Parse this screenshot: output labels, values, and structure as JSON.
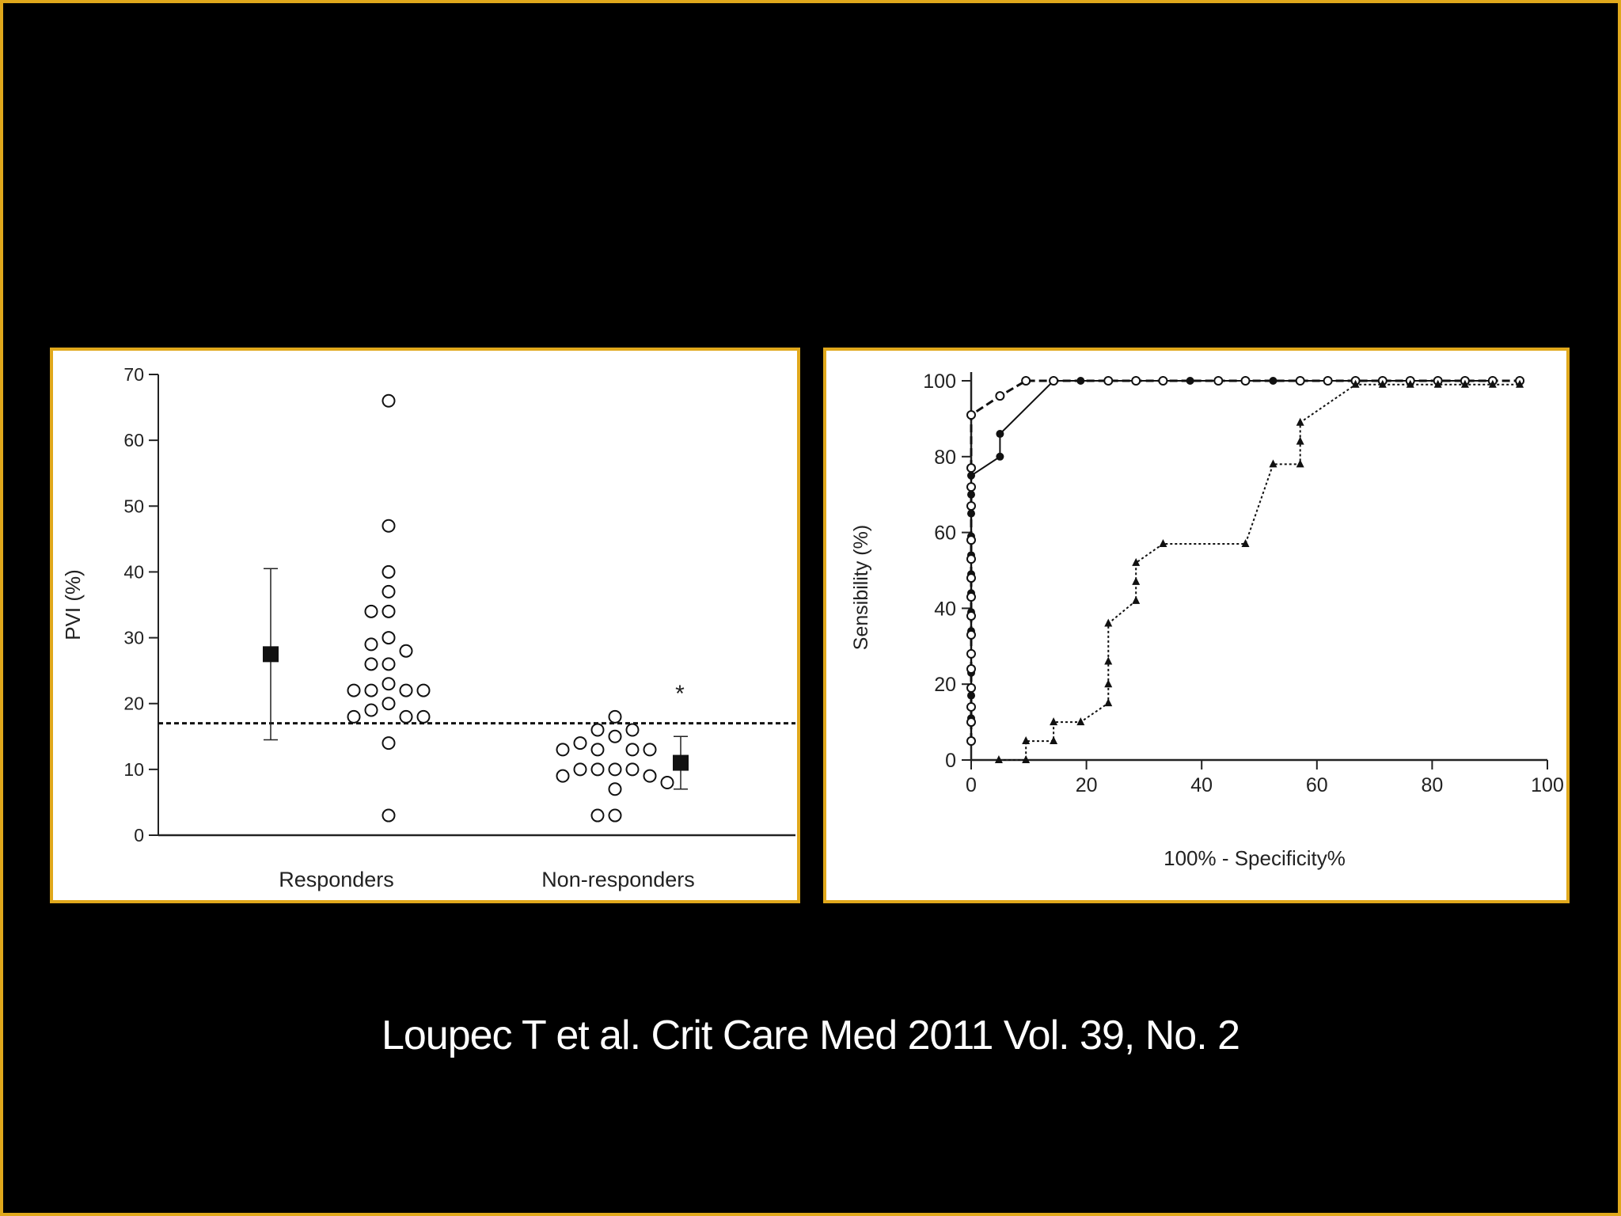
{
  "citation": "Loupec T et al.  Crit Care Med 2011 Vol. 39, No. 2",
  "colors": {
    "background": "#000000",
    "border": "#e0a81c",
    "panel": "#ffffff",
    "ink": "#222222"
  },
  "chart_data": [
    {
      "type": "scatter",
      "title": "",
      "ylabel": "PVI (%)",
      "xlabel": "",
      "ylim": [
        0,
        70
      ],
      "yticks": [
        0,
        10,
        20,
        30,
        40,
        50,
        60,
        70
      ],
      "categories": [
        "Responders",
        "Non-responders"
      ],
      "threshold": 17,
      "significance_marker": "*",
      "series": [
        {
          "category": "Responders",
          "marker": "open-circle",
          "values": [
            66,
            47,
            40,
            37,
            34,
            34,
            30,
            29,
            28,
            26,
            26,
            23,
            22,
            22,
            22,
            22,
            20,
            19,
            18,
            18,
            18,
            14,
            3
          ]
        },
        {
          "category": "Non-responders",
          "marker": "open-circle",
          "values": [
            18,
            16,
            16,
            15,
            14,
            13,
            13,
            13,
            13,
            10,
            10,
            10,
            10,
            9,
            9,
            8,
            7,
            3,
            3
          ]
        }
      ],
      "summary": [
        {
          "category": "Responders",
          "mean": 27.5,
          "low": 14.5,
          "high": 40.5
        },
        {
          "category": "Non-responders",
          "mean": 11,
          "low": 7,
          "high": 15
        }
      ]
    },
    {
      "type": "line",
      "title": "",
      "xlabel": "100% - Specificity%",
      "ylabel": "Sensibility (%)",
      "xlim": [
        0,
        100
      ],
      "ylim": [
        0,
        100
      ],
      "xticks": [
        0,
        20,
        40,
        60,
        80,
        100
      ],
      "yticks": [
        0,
        20,
        40,
        60,
        80,
        100
      ],
      "series": [
        {
          "marker": "filled-circle",
          "line": "solid",
          "x": [
            0,
            0,
            0,
            0,
            0,
            0,
            0,
            0,
            0,
            0,
            0,
            0,
            0,
            0,
            5,
            5,
            14.3,
            19,
            23.8,
            28.6,
            38,
            42.9,
            52.4,
            57.1,
            66.7,
            71.4,
            76.2,
            81,
            85.7,
            90.5
          ],
          "y": [
            5,
            11,
            17,
            23,
            28,
            34,
            39,
            44,
            49,
            54,
            59,
            65,
            70,
            75,
            80,
            86,
            100,
            100,
            100,
            100,
            100,
            100,
            100,
            100,
            100,
            100,
            100,
            100,
            100,
            100
          ]
        },
        {
          "marker": "open-circle",
          "line": "dashed",
          "x": [
            0,
            0,
            0,
            0,
            0,
            0,
            0,
            0,
            0,
            0,
            0,
            0,
            0,
            0,
            0,
            0,
            5,
            9.5,
            14.3,
            23.8,
            28.6,
            33.3,
            42.9,
            47.6,
            57.1,
            61.9,
            66.7,
            71.4,
            76.2,
            81,
            85.7,
            90.5,
            95.2
          ],
          "y": [
            5,
            10,
            14,
            19,
            24,
            28,
            33,
            38,
            43,
            48,
            53,
            58,
            67,
            72,
            77,
            91,
            96,
            100,
            100,
            100,
            100,
            100,
            100,
            100,
            100,
            100,
            100,
            100,
            100,
            100,
            100,
            100,
            100
          ]
        },
        {
          "marker": "filled-triangle",
          "line": "dotted",
          "x": [
            4.8,
            9.5,
            9.5,
            14.3,
            14.3,
            19,
            23.8,
            23.8,
            23.8,
            23.8,
            28.6,
            28.6,
            28.6,
            33.3,
            47.6,
            52.4,
            57.1,
            57.1,
            57.1,
            66.7,
            71.4,
            76.2,
            81,
            85.7,
            90.5,
            95.2
          ],
          "y": [
            0,
            0,
            5,
            5,
            10,
            10,
            15,
            20,
            26,
            36,
            42,
            47,
            52,
            57,
            57,
            78,
            78,
            84,
            89,
            99,
            99,
            99,
            99,
            99,
            99,
            99
          ]
        }
      ]
    }
  ]
}
